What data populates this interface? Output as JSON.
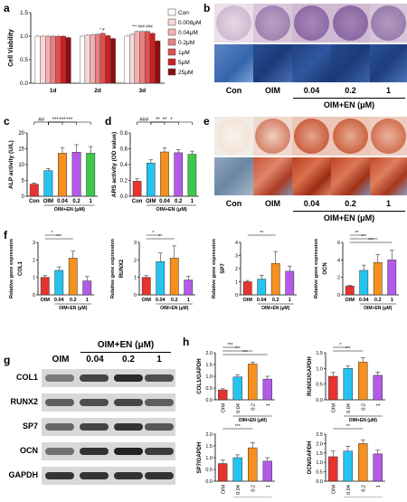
{
  "panels": {
    "a": {
      "label": "a",
      "ylabel": "Cell Viability",
      "groups": [
        "1d",
        "2d",
        "3d"
      ],
      "series": [
        {
          "name": "Con",
          "color": "#ffffff",
          "values": [
            1.0,
            1.0,
            1.0
          ]
        },
        {
          "name": "0.008μM",
          "color": "#f8d7d7",
          "values": [
            1.0,
            1.02,
            1.04
          ]
        },
        {
          "name": "0.04μM",
          "color": "#f1b0b0",
          "values": [
            1.0,
            1.03,
            1.1
          ]
        },
        {
          "name": "0.2μM",
          "color": "#ea8080",
          "values": [
            1.0,
            1.04,
            1.1
          ]
        },
        {
          "name": "1μM",
          "color": "#e05050",
          "values": [
            1.0,
            1.06,
            1.1
          ]
        },
        {
          "name": "5μM",
          "color": "#cc2020",
          "values": [
            1.0,
            1.01,
            1.06
          ]
        },
        {
          "name": "25μM",
          "color": "#8a1010",
          "values": [
            0.97,
            0.95,
            0.9
          ]
        }
      ],
      "ylim": [
        0.0,
        1.5
      ],
      "yticks": [
        "0.0",
        "0.5",
        "1.0",
        "1.5"
      ]
    },
    "b": {
      "label": "b",
      "lab_con": "Con",
      "lab_oim": "OIM",
      "lab_004": "0.04",
      "lab_02": "0.2",
      "lab_1": "1",
      "group_label": "OIM+EN (μM)"
    },
    "c": {
      "label": "c",
      "ylabel": "ALP activity (U/L)",
      "categories": [
        "Con",
        "OIM",
        "0.04",
        "0.2",
        "1"
      ],
      "values": [
        3.8,
        8.1,
        13.6,
        13.9,
        13.6
      ],
      "errors": [
        0.4,
        0.6,
        1.8,
        2.4,
        2.1
      ],
      "colors": [
        "#e8322e",
        "#25c3f0",
        "#f5901f",
        "#b35ae8",
        "#3cc84a"
      ],
      "ylim": [
        0,
        20
      ],
      "yticks": [
        "0",
        "5",
        "10",
        "15",
        "20"
      ],
      "group_label": "OIM+EN (μM)",
      "sig": [
        "##",
        "***",
        "***",
        "***"
      ]
    },
    "d": {
      "label": "d",
      "ylabel": "ARS activity (OD value)",
      "categories": [
        "Con",
        "OIM",
        "0.04",
        "0.2",
        "1"
      ],
      "values": [
        0.19,
        0.42,
        0.56,
        0.55,
        0.53
      ],
      "errors": [
        0.03,
        0.04,
        0.05,
        0.04,
        0.04
      ],
      "colors": [
        "#e8322e",
        "#25c3f0",
        "#f5901f",
        "#b35ae8",
        "#3cc84a"
      ],
      "ylim": [
        0.0,
        0.8
      ],
      "yticks": [
        "0.0",
        "0.2",
        "0.4",
        "0.6",
        "0.8"
      ],
      "group_label": "OIM+EN (μM)",
      "sig": [
        "###",
        "**",
        "**",
        "*"
      ]
    },
    "e": {
      "label": "e",
      "lab_con": "Con",
      "lab_oim": "OIM",
      "lab_004": "0.04",
      "lab_02": "0.2",
      "lab_1": "1",
      "group_label": "OIM+EN (μM)"
    },
    "f": {
      "label": "f",
      "ylabel": "Relative gene expression",
      "group_label": "OIM+EN (μM)",
      "categories": [
        "OIM",
        "0.04",
        "0.2",
        "1"
      ],
      "colors": [
        "#e8322e",
        "#25c3f0",
        "#f5901f",
        "#b35ae8"
      ],
      "charts": [
        {
          "gene": "COL1",
          "values": [
            1.0,
            1.4,
            2.1,
            0.8
          ],
          "errors": [
            0.1,
            0.2,
            0.4,
            0.25
          ],
          "ylim": [
            0,
            3
          ],
          "yticks": [
            "0",
            "1",
            "2",
            "3"
          ],
          "sig": [
            "*",
            "***"
          ]
        },
        {
          "gene": "RUNX2",
          "values": [
            1.0,
            1.9,
            2.1,
            0.85
          ],
          "errors": [
            0.1,
            0.5,
            0.7,
            0.2
          ],
          "ylim": [
            0,
            3
          ],
          "yticks": [
            "0",
            "1",
            "2",
            "3"
          ],
          "sig": [
            "*",
            "**"
          ]
        },
        {
          "gene": "SP7",
          "values": [
            1.0,
            1.2,
            2.4,
            1.8
          ],
          "errors": [
            0.1,
            0.3,
            0.9,
            0.4
          ],
          "ylim": [
            0,
            4
          ],
          "yticks": [
            "0",
            "1",
            "2",
            "3",
            "4"
          ],
          "sig": [
            "**"
          ]
        },
        {
          "gene": "OCN",
          "values": [
            1.0,
            2.8,
            3.7,
            4.0
          ],
          "errors": [
            0.1,
            0.6,
            0.9,
            1.1
          ],
          "ylim": [
            0,
            6
          ],
          "yticks": [
            "0",
            "2",
            "4",
            "6"
          ],
          "sig": [
            "**",
            "***",
            "***"
          ]
        }
      ]
    },
    "g": {
      "label": "g",
      "lane_labels": [
        "OIM",
        "0.04",
        "0.2",
        "1"
      ],
      "group_label": "OIM+EN (μM)",
      "bands": [
        "COL1",
        "RUNX2",
        "SP7",
        "OCN",
        "GAPDH"
      ]
    },
    "h": {
      "label": "h",
      "group_label": "OIM+EN (μM)",
      "categories": [
        "OIM",
        "0.04",
        "0.2",
        "1"
      ],
      "colors": [
        "#e8322e",
        "#25c3f0",
        "#f5901f",
        "#b35ae8"
      ],
      "charts": [
        {
          "ylabel": "COL1/GAPDH",
          "values": [
            0.42,
            0.97,
            1.52,
            0.88
          ],
          "errors": [
            0.05,
            0.1,
            0.08,
            0.12
          ],
          "ylim": [
            0.0,
            2.0
          ],
          "yticks": [
            "0.0",
            "0.5",
            "1.0",
            "1.5",
            "2.0"
          ],
          "sig": [
            "***",
            "***",
            "***"
          ]
        },
        {
          "ylabel": "RUNX2/GAPDH",
          "values": [
            0.75,
            1.0,
            1.2,
            0.78
          ],
          "errors": [
            0.12,
            0.08,
            0.15,
            0.1
          ],
          "ylim": [
            0.0,
            1.5
          ],
          "yticks": [
            "0.0",
            "0.5",
            "1.0",
            "1.5"
          ],
          "sig": [
            "*",
            "***"
          ]
        },
        {
          "ylabel": "SP7/GAPDH",
          "values": [
            0.75,
            1.0,
            1.42,
            0.85
          ],
          "errors": [
            0.15,
            0.12,
            0.22,
            0.15
          ],
          "ylim": [
            0.0,
            2.0
          ],
          "yticks": [
            "0.0",
            "0.5",
            "1.0",
            "1.5",
            "2.0"
          ],
          "sig": [
            "***"
          ]
        },
        {
          "ylabel": "OCN/GAPDH",
          "values": [
            1.3,
            1.6,
            2.0,
            1.45
          ],
          "errors": [
            0.3,
            0.25,
            0.2,
            0.2
          ],
          "ylim": [
            0.0,
            2.5
          ],
          "yticks": [
            "0.0",
            "0.5",
            "1.0",
            "1.5",
            "2.0",
            "2.5"
          ],
          "sig": [
            "**"
          ]
        }
      ]
    }
  },
  "chart_data": [
    {
      "type": "bar",
      "title": "",
      "ylabel": "Cell Viability",
      "categories": [
        "1d",
        "2d",
        "3d"
      ],
      "series": [
        {
          "name": "Con",
          "values": [
            1.0,
            1.0,
            1.0
          ]
        },
        {
          "name": "0.008μM",
          "values": [
            1.0,
            1.02,
            1.04
          ]
        },
        {
          "name": "0.04μM",
          "values": [
            1.0,
            1.03,
            1.1
          ]
        },
        {
          "name": "0.2μM",
          "values": [
            1.0,
            1.04,
            1.1
          ]
        },
        {
          "name": "1μM",
          "values": [
            1.0,
            1.06,
            1.1
          ]
        },
        {
          "name": "5μM",
          "values": [
            1.0,
            1.01,
            1.06
          ]
        },
        {
          "name": "25μM",
          "values": [
            0.97,
            0.95,
            0.9
          ]
        }
      ],
      "ylim": [
        0,
        1.5
      ]
    },
    {
      "type": "bar",
      "ylabel": "ALP activity (U/L)",
      "categories": [
        "Con",
        "OIM",
        "0.04",
        "0.2",
        "1"
      ],
      "values": [
        3.8,
        8.1,
        13.6,
        13.9,
        13.6
      ],
      "ylim": [
        0,
        20
      ]
    },
    {
      "type": "bar",
      "ylabel": "ARS activity (OD value)",
      "categories": [
        "Con",
        "OIM",
        "0.04",
        "0.2",
        "1"
      ],
      "values": [
        0.19,
        0.42,
        0.56,
        0.55,
        0.53
      ],
      "ylim": [
        0,
        0.8
      ]
    },
    {
      "type": "bar",
      "ylabel": "Relative gene expression",
      "categories": [
        "OIM",
        "0.04",
        "0.2",
        "1"
      ],
      "series": [
        {
          "name": "COL1",
          "values": [
            1.0,
            1.4,
            2.1,
            0.8
          ]
        },
        {
          "name": "RUNX2",
          "values": [
            1.0,
            1.9,
            2.1,
            0.85
          ]
        },
        {
          "name": "SP7",
          "values": [
            1.0,
            1.2,
            2.4,
            1.8
          ]
        },
        {
          "name": "OCN",
          "values": [
            1.0,
            2.8,
            3.7,
            4.0
          ]
        }
      ]
    },
    {
      "type": "bar",
      "categories": [
        "OIM",
        "0.04",
        "0.2",
        "1"
      ],
      "series": [
        {
          "name": "COL1/GAPDH",
          "values": [
            0.42,
            0.97,
            1.52,
            0.88
          ]
        },
        {
          "name": "RUNX2/GAPDH",
          "values": [
            0.75,
            1.0,
            1.2,
            0.78
          ]
        },
        {
          "name": "SP7/GAPDH",
          "values": [
            0.75,
            1.0,
            1.42,
            0.85
          ]
        },
        {
          "name": "OCN/GAPDH",
          "values": [
            1.3,
            1.6,
            2.0,
            1.45
          ]
        }
      ]
    }
  ]
}
